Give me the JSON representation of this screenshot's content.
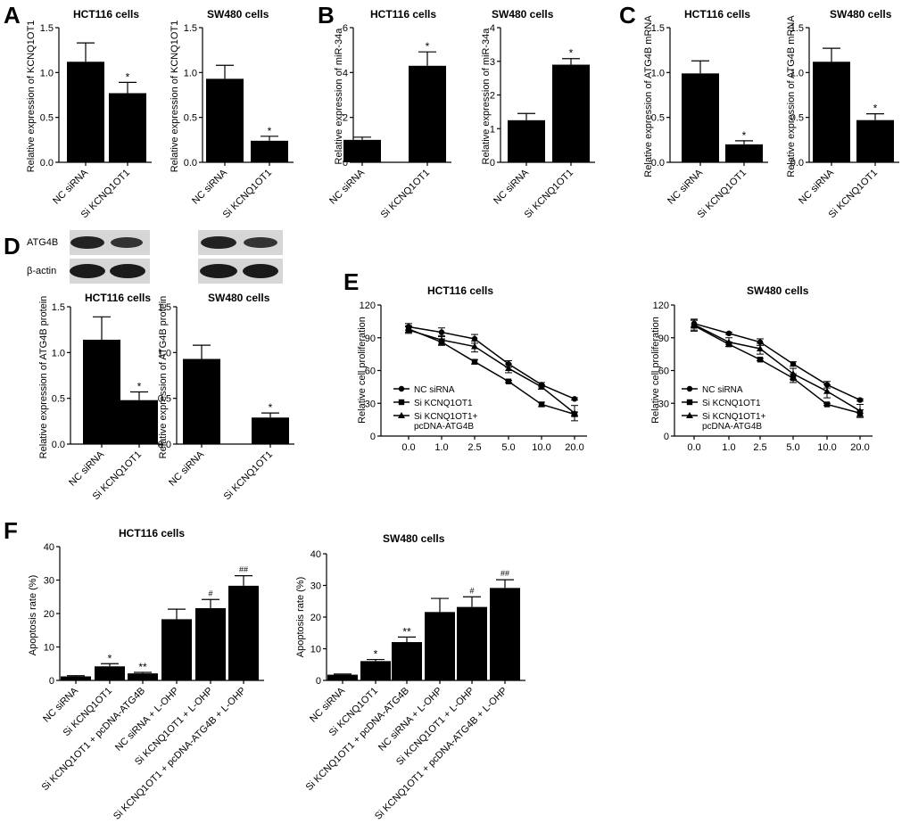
{
  "panel_labels": [
    "A",
    "B",
    "C",
    "D",
    "E",
    "F"
  ],
  "western_blot": {
    "labels": [
      "ATG4B",
      "β-actin"
    ]
  },
  "chart_data": [
    {
      "id": "A1",
      "type": "bar",
      "title": "HCT116 cells",
      "ylabel": "Relative expression of KCNQ1OT1",
      "categories": [
        "NC siRNA",
        "Si KCNQ1OT1"
      ],
      "values": [
        1.12,
        0.77
      ],
      "errors": [
        0.21,
        0.12
      ],
      "annotations": [
        "",
        "*"
      ],
      "ylim": [
        0,
        1.5
      ],
      "yticks": [
        0.0,
        0.5,
        1.0,
        1.5
      ],
      "tick_labels": [
        "0.0",
        "0.5",
        "1.0",
        "1.5"
      ]
    },
    {
      "id": "A2",
      "type": "bar",
      "title": "SW480 cells",
      "ylabel": "Relative expression of KCNQ1OT1",
      "categories": [
        "NC siRNA",
        "Si KCNQ1OT1"
      ],
      "values": [
        0.93,
        0.24
      ],
      "errors": [
        0.15,
        0.05
      ],
      "annotations": [
        "",
        "*"
      ],
      "ylim": [
        0,
        1.5
      ],
      "yticks": [
        0.0,
        0.5,
        1.0,
        1.5
      ],
      "tick_labels": [
        "0.0",
        "0.5",
        "1.0",
        "1.5"
      ]
    },
    {
      "id": "B1",
      "type": "bar",
      "title": "HCT116 cells",
      "ylabel": "Relative expression of miR-34a",
      "categories": [
        "NC siRNA",
        "Si KCNQ1OT1"
      ],
      "values": [
        1.0,
        4.3
      ],
      "errors": [
        0.12,
        0.62
      ],
      "annotations": [
        "",
        "*"
      ],
      "ylim": [
        0,
        6
      ],
      "yticks": [
        0,
        2,
        4,
        6
      ],
      "tick_labels": [
        "0",
        "2",
        "4",
        "6"
      ]
    },
    {
      "id": "B2",
      "type": "bar",
      "title": "SW480 cells",
      "ylabel": "Relative expression of miR-34a",
      "categories": [
        "NC siRNA",
        "Si KCNQ1OT1"
      ],
      "values": [
        1.25,
        2.9
      ],
      "errors": [
        0.2,
        0.18
      ],
      "annotations": [
        "",
        "*"
      ],
      "ylim": [
        0,
        4
      ],
      "yticks": [
        0,
        1,
        2,
        3,
        4
      ],
      "tick_labels": [
        "0",
        "1",
        "2",
        "3",
        "4"
      ]
    },
    {
      "id": "C1",
      "type": "bar",
      "title": "HCT116 cells",
      "ylabel": "Relative expression of ATG4B mRNA",
      "categories": [
        "NC siRNA",
        "Si KCNQ1OT1"
      ],
      "values": [
        0.99,
        0.2
      ],
      "errors": [
        0.14,
        0.04
      ],
      "annotations": [
        "",
        "*"
      ],
      "ylim": [
        0,
        1.5
      ],
      "yticks": [
        0.0,
        0.5,
        1.0,
        1.5
      ],
      "tick_labels": [
        "0.0",
        "0.5",
        "1.0",
        "1.5"
      ]
    },
    {
      "id": "C2",
      "type": "bar",
      "title": "SW480 cells",
      "ylabel": "Relative expression of ATG4B mRNA",
      "categories": [
        "NC siRNA",
        "Si KCNQ1OT1"
      ],
      "values": [
        1.12,
        0.47
      ],
      "errors": [
        0.15,
        0.07
      ],
      "annotations": [
        "",
        "*"
      ],
      "ylim": [
        0,
        1.5
      ],
      "yticks": [
        0.0,
        0.5,
        1.0,
        1.5
      ],
      "tick_labels": [
        "0.0",
        "0.5",
        "1.0",
        "1.5"
      ]
    },
    {
      "id": "D1",
      "type": "bar",
      "title": "HCT116 cells",
      "ylabel": "Relative expression of ATG4B protein",
      "categories": [
        "NC siRNA",
        "Si KCNQ1OT1"
      ],
      "values": [
        1.14,
        0.48
      ],
      "errors": [
        0.25,
        0.09
      ],
      "annotations": [
        "",
        "*"
      ],
      "ylim": [
        0,
        1.5
      ],
      "yticks": [
        0.0,
        0.5,
        1.0,
        1.5
      ],
      "tick_labels": [
        "0.0",
        "0.5",
        "1.0",
        "1.5"
      ]
    },
    {
      "id": "D2",
      "type": "bar",
      "title": "SW480 cells",
      "ylabel": "Relative expression of ATG4B protein",
      "categories": [
        "NC siRNA",
        "Si KCNQ1OT1"
      ],
      "values": [
        0.93,
        0.29
      ],
      "errors": [
        0.15,
        0.05
      ],
      "annotations": [
        "",
        "*"
      ],
      "ylim": [
        0,
        1.5
      ],
      "yticks": [
        0.0,
        0.5,
        1.0,
        1.5
      ],
      "tick_labels": [
        "0.0",
        "0.5",
        "1.0",
        "1.5"
      ]
    },
    {
      "id": "E1",
      "type": "line",
      "title": "HCT116 cells",
      "ylabel": "Relative cell proliferation",
      "x": [
        "0.0",
        "1.0",
        "2.5",
        "5.0",
        "10.0",
        "20.0"
      ],
      "ylim": [
        0,
        120
      ],
      "yticks": [
        0,
        30,
        60,
        90,
        120
      ],
      "tick_labels": [
        "0",
        "30",
        "60",
        "90",
        "120"
      ],
      "series": [
        {
          "name": "NC siRNA",
          "marker": "circle",
          "values": [
            100,
            95,
            89,
            66,
            47,
            34
          ],
          "errors": [
            3,
            4,
            4,
            3,
            2,
            1
          ]
        },
        {
          "name": "Si KCNQ1OT1",
          "marker": "square",
          "values": [
            98,
            86,
            68,
            50,
            29,
            20
          ],
          "errors": [
            3,
            3,
            2,
            1,
            2,
            2
          ]
        },
        {
          "name": "Si KCNQ1OT1+ pcDNA-ATG4B",
          "marker": "triangle",
          "values": [
            97,
            88,
            82,
            62,
            45,
            21
          ],
          "errors": [
            3,
            4,
            5,
            4,
            2,
            7
          ]
        }
      ],
      "legend_position": "left"
    },
    {
      "id": "E2",
      "type": "line",
      "title": "SW480 cells",
      "ylabel": "Relative cell proliferation",
      "x": [
        "0.0",
        "1.0",
        "2.5",
        "5.0",
        "10.0",
        "20.0"
      ],
      "ylim": [
        0,
        120
      ],
      "yticks": [
        0,
        30,
        60,
        90,
        120
      ],
      "tick_labels": [
        "0",
        "30",
        "60",
        "90",
        "120"
      ],
      "series": [
        {
          "name": "NC siRNA",
          "marker": "circle",
          "values": [
            103,
            94,
            86,
            66,
            47,
            33
          ],
          "errors": [
            4,
            1,
            3,
            2,
            3,
            1
          ]
        },
        {
          "name": "Si KCNQ1OT1",
          "marker": "square",
          "values": [
            101,
            84,
            70,
            53,
            29,
            21
          ],
          "errors": [
            5,
            2,
            1,
            4,
            1,
            3
          ]
        },
        {
          "name": "Si KCNQ1OT1+ pcDNA-ATG4B",
          "marker": "triangle",
          "values": [
            102,
            86,
            80,
            57,
            41,
            23
          ],
          "errors": [
            5,
            4,
            5,
            5,
            6,
            6
          ]
        }
      ],
      "legend_position": "left"
    },
    {
      "id": "F1",
      "type": "bar",
      "title": "HCT116 cells",
      "ylabel": "Apoptosis rate (%)",
      "categories": [
        "NC siRNA",
        "Si KCNQ1OT1",
        "Si KCNQ1OT1 + pcDNA-ATG4B",
        "NC siRNA + L-OHP",
        "Si KCNQ1OT1 + L-OHP",
        "Si KCNQ1OT1 + pcDNA-ATG4B + L-OHP"
      ],
      "values": [
        1.2,
        4.2,
        2.1,
        18.3,
        21.6,
        28.3
      ],
      "errors": [
        0.2,
        0.8,
        0.3,
        3.0,
        2.6,
        3.0
      ],
      "annotations": [
        "",
        "*",
        "**",
        "",
        "#",
        "##"
      ],
      "ylim": [
        0,
        40
      ],
      "yticks": [
        0,
        10,
        20,
        30,
        40
      ],
      "tick_labels": [
        "0",
        "10",
        "20",
        "30",
        "40"
      ]
    },
    {
      "id": "F2",
      "type": "bar",
      "title": "SW480 cells",
      "ylabel": "Apoptosis rate (%)",
      "categories": [
        "NC siRNA",
        "Si KCNQ1OT1",
        "Si KCNQ1OT1 + pcDNA-ATG4B",
        "NC siRNA + L-OHP",
        "Si KCNQ1OT1 + L-OHP",
        "Si KCNQ1OT1 + pcDNA-ATG4B + L-OHP"
      ],
      "values": [
        1.8,
        6.1,
        12.1,
        21.6,
        23.2,
        29.2
      ],
      "errors": [
        0.2,
        0.5,
        1.6,
        4.3,
        3.2,
        2.6
      ],
      "annotations": [
        "",
        "*",
        "**",
        "",
        "#",
        "##"
      ],
      "ylim": [
        0,
        40
      ],
      "yticks": [
        0,
        10,
        20,
        30,
        40
      ],
      "tick_labels": [
        "0",
        "10",
        "20",
        "30",
        "40"
      ]
    }
  ]
}
